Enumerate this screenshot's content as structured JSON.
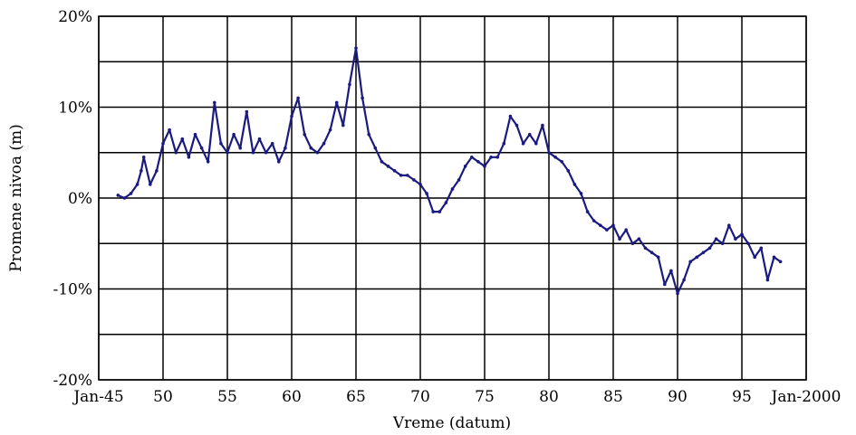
{
  "chart_data": {
    "type": "line",
    "title": "",
    "xlabel": "Vreme (datum)",
    "ylabel": "Promene nivoa (m)",
    "xlim": [
      1945,
      2000
    ],
    "ylim": [
      -20,
      20
    ],
    "x_ticks": [
      {
        "value": 1945,
        "label": "Jan-45"
      },
      {
        "value": 1950,
        "label": "50"
      },
      {
        "value": 1955,
        "label": "55"
      },
      {
        "value": 1960,
        "label": "60"
      },
      {
        "value": 1965,
        "label": "65"
      },
      {
        "value": 1970,
        "label": "70"
      },
      {
        "value": 1975,
        "label": "75"
      },
      {
        "value": 1980,
        "label": "80"
      },
      {
        "value": 1985,
        "label": "85"
      },
      {
        "value": 1990,
        "label": "90"
      },
      {
        "value": 1995,
        "label": "95"
      },
      {
        "value": 2000,
        "label": "Jan-2000"
      }
    ],
    "y_ticks": [
      {
        "value": 20,
        "label": "20%"
      },
      {
        "value": 10,
        "label": "10%"
      },
      {
        "value": 0,
        "label": "0%"
      },
      {
        "value": -10,
        "label": "-10%"
      },
      {
        "value": -20,
        "label": "-20%"
      }
    ],
    "y_grid": [
      20,
      15,
      10,
      5,
      0,
      -5,
      -10,
      -15,
      -20
    ],
    "grid": true,
    "series": [
      {
        "color": "#1a1a80",
        "x": [
          1946.5,
          1947.0,
          1947.5,
          1948.0,
          1948.3,
          1948.5,
          1949.0,
          1949.5,
          1950.0,
          1950.5,
          1951.0,
          1951.5,
          1952.0,
          1952.5,
          1953.0,
          1953.5,
          1954.0,
          1954.5,
          1955.0,
          1955.5,
          1956.0,
          1956.5,
          1957.0,
          1957.5,
          1958.0,
          1958.5,
          1959.0,
          1959.5,
          1960.0,
          1960.5,
          1961.0,
          1961.5,
          1962.0,
          1962.5,
          1963.0,
          1963.5,
          1964.0,
          1964.5,
          1965.0,
          1965.5,
          1966.0,
          1966.5,
          1967.0,
          1967.5,
          1968.0,
          1968.5,
          1969.0,
          1969.5,
          1970.0,
          1970.5,
          1971.0,
          1971.5,
          1972.0,
          1972.5,
          1973.0,
          1973.5,
          1974.0,
          1974.5,
          1975.0,
          1975.5,
          1976.0,
          1976.5,
          1977.0,
          1977.5,
          1978.0,
          1978.5,
          1979.0,
          1979.5,
          1980.0,
          1980.5,
          1981.0,
          1981.5,
          1982.0,
          1982.5,
          1983.0,
          1983.5,
          1984.0,
          1984.5,
          1985.0,
          1985.5,
          1986.0,
          1986.5,
          1987.0,
          1987.5,
          1988.0,
          1988.5,
          1989.0,
          1989.5,
          1990.0,
          1990.5,
          1991.0,
          1991.5,
          1992.0,
          1992.5,
          1993.0,
          1993.5,
          1994.0,
          1994.5,
          1995.0,
          1995.5,
          1996.0,
          1996.5,
          1997.0,
          1997.5,
          1998.0
        ],
        "y": [
          0.3,
          0.0,
          0.5,
          1.5,
          3.0,
          4.5,
          1.5,
          3.0,
          6.0,
          7.5,
          5.0,
          6.5,
          4.5,
          7.0,
          5.5,
          4.0,
          10.5,
          6.0,
          5.0,
          7.0,
          5.5,
          9.5,
          5.0,
          6.5,
          5.0,
          6.0,
          4.0,
          5.5,
          9.0,
          11.0,
          7.0,
          5.5,
          5.0,
          6.0,
          7.5,
          10.5,
          8.0,
          12.5,
          16.5,
          11.0,
          7.0,
          5.5,
          4.0,
          3.5,
          3.0,
          2.5,
          2.5,
          2.0,
          1.5,
          0.5,
          -1.5,
          -1.5,
          -0.5,
          1.0,
          2.0,
          3.5,
          4.5,
          4.0,
          3.5,
          4.5,
          4.5,
          6.0,
          9.0,
          8.0,
          6.0,
          7.0,
          6.0,
          8.0,
          5.0,
          4.5,
          4.0,
          3.0,
          1.5,
          0.5,
          -1.5,
          -2.5,
          -3.0,
          -3.5,
          -3.0,
          -4.5,
          -3.5,
          -5.0,
          -4.5,
          -5.5,
          -6.0,
          -6.5,
          -9.5,
          -8.0,
          -10.5,
          -9.0,
          -7.0,
          -6.5,
          -6.0,
          -5.5,
          -4.5,
          -5.0,
          -3.0,
          -4.5,
          -4.0,
          -5.0,
          -6.5,
          -5.5,
          -9.0,
          -6.5,
          -7.0
        ]
      }
    ]
  }
}
